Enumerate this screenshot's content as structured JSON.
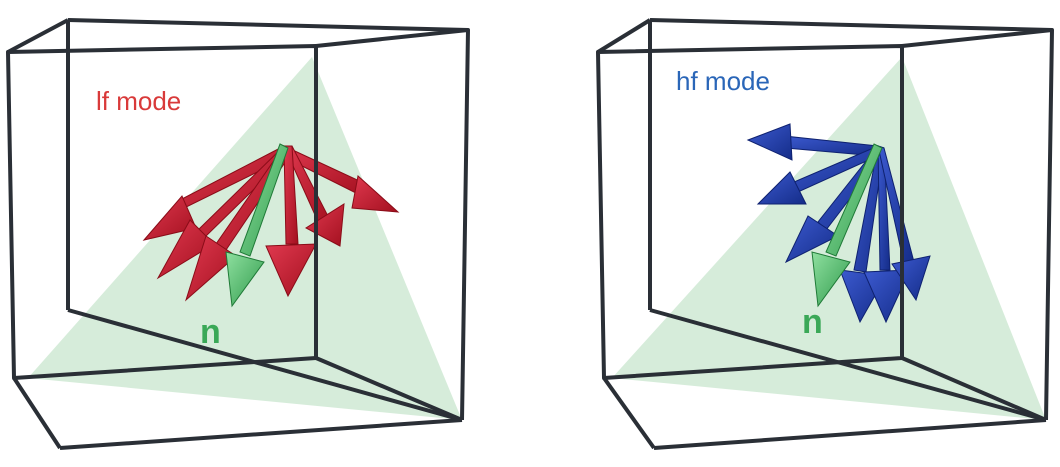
{
  "colors": {
    "plane": "#cfe9d3",
    "cube_edge": "#2a2f36",
    "normal_vector": "#3aa857",
    "lf_arrows": "#c0182e",
    "hf_arrows": "#1f3fa6",
    "lf_label": "#d93a3a",
    "hf_label": "#2a66b8",
    "n_label": "#3aa857"
  },
  "panels": [
    {
      "mode_label": "lf mode",
      "normal_label": "n",
      "arrow_color": "lf_arrows"
    },
    {
      "mode_label": "hf mode",
      "normal_label": "n",
      "arrow_color": "hf_arrows"
    }
  ]
}
